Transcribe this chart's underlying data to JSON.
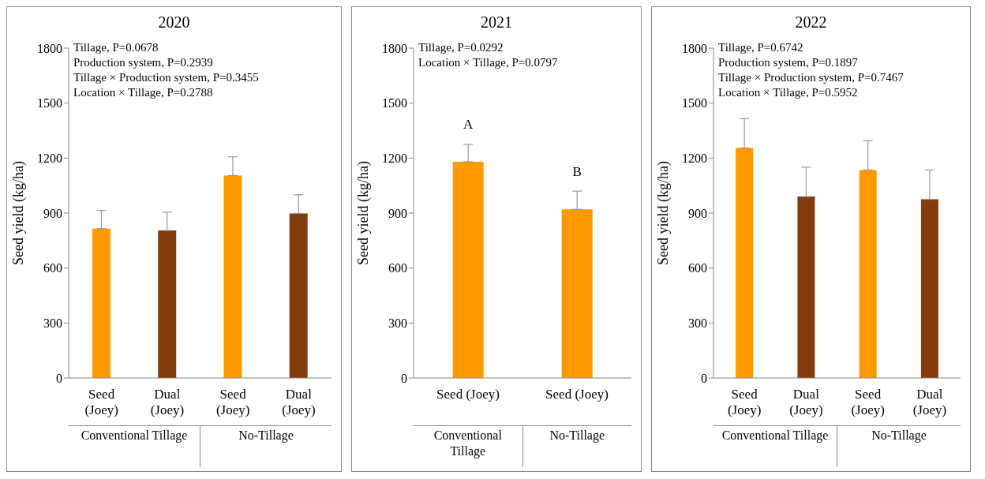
{
  "chart_data": [
    {
      "type": "bar",
      "title": "2020",
      "ylabel": "Seed yield (kg/ha)",
      "categories": [
        "Seed (Joey)",
        "Dual (Joey)",
        "Seed (Joey)",
        "Dual (Joey)"
      ],
      "values": [
        815,
        805,
        1105,
        898
      ],
      "colors": [
        "#ff9900",
        "#843c0c",
        "#ff9900",
        "#843c0c"
      ],
      "errors": [
        [
          815,
          915
        ],
        [
          805,
          905
        ],
        [
          1105,
          1207
        ],
        [
          898,
          1000
        ]
      ],
      "ylim": [
        0,
        1800
      ],
      "yticks": [
        0,
        300,
        600,
        900,
        1200,
        1500,
        1800
      ],
      "grid": false,
      "annotations": [
        "Tillage, P=0.0678\nProduction system, P=0.2939\nTillage × Production system, P=0.3455\nLocation × Tillage, P=0.2788",
        "Conventional Tillage",
        "No-Tillage"
      ]
    },
    {
      "type": "bar",
      "title": "2021",
      "ylabel": "Seed yield (kg/ha)",
      "categories": [
        "Seed (Joey)",
        "Seed (Joey)"
      ],
      "values": [
        1180,
        920
      ],
      "colors": [
        "#ff9900",
        "#ff9900"
      ],
      "errors": [
        [
          1180,
          1275
        ],
        [
          920,
          1020
        ]
      ],
      "ylim": [
        0,
        1800
      ],
      "yticks": [
        0,
        300,
        600,
        900,
        1200,
        1500,
        1800
      ],
      "grid": false,
      "value_labels": [
        "A",
        "B"
      ],
      "annotations": [
        "Tillage, P=0.0292\nLocation × Tillage, P=0.0797",
        "Conventional Tillage",
        "No-Tillage"
      ]
    },
    {
      "type": "bar",
      "title": "2022",
      "ylabel": "Seed yield (kg/ha)",
      "categories": [
        "Seed (Joey)",
        "Dual (Joey)",
        "Seed (Joey)",
        "Dual (Joey)"
      ],
      "values": [
        1255,
        990,
        1135,
        975
      ],
      "colors": [
        "#ff9900",
        "#843c0c",
        "#ff9900",
        "#843c0c"
      ],
      "errors": [
        [
          1255,
          1415
        ],
        [
          990,
          1150
        ],
        [
          1135,
          1295
        ],
        [
          975,
          1135
        ]
      ],
      "ylim": [
        0,
        1800
      ],
      "yticks": [
        0,
        300,
        600,
        900,
        1200,
        1500,
        1800
      ],
      "grid": false,
      "annotations": [
        "Tillage, P=0.6742\nProduction system, P=0.1897\nTillage × Production system, P=0.7467\nLocation × Tillage, P=0.5952",
        "Conventional Tillage",
        "No-Tillage"
      ]
    }
  ]
}
